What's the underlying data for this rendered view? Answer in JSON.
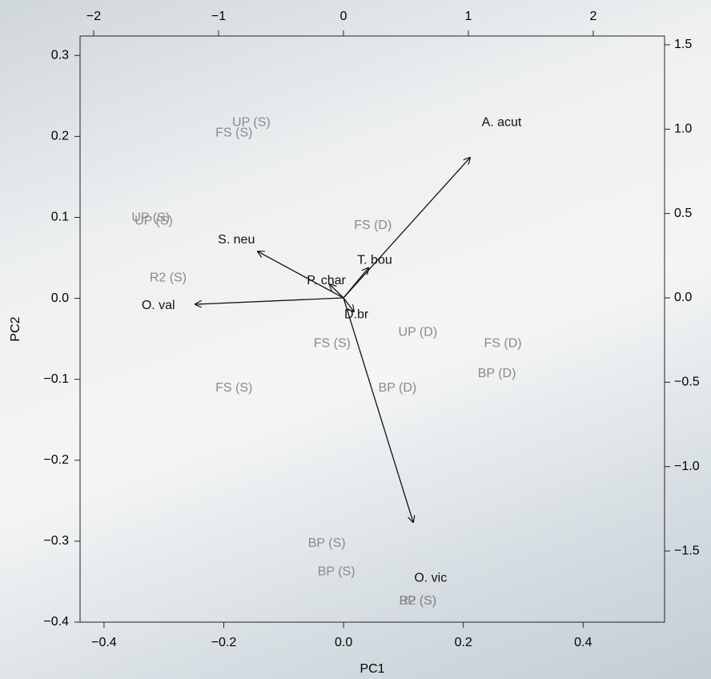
{
  "chart_data": {
    "type": "biplot",
    "xlabel": "PC1",
    "ylabel": "PC2",
    "xlim": [
      -0.44,
      0.536
    ],
    "ylim": [
      -0.4,
      0.324
    ],
    "xticks": [
      {
        "value": -0.4,
        "label": "−0.4"
      },
      {
        "value": -0.2,
        "label": "−0.2"
      },
      {
        "value": 0,
        "label": "0.0"
      },
      0.2,
      0.4
    ],
    "yticks": [
      {
        "value": -0.4,
        "label": "−0.4"
      },
      {
        "value": -0.3,
        "label": "−0.3"
      },
      {
        "value": -0.2,
        "label": "−0.2"
      },
      {
        "value": -0.1,
        "label": "−0.1"
      },
      {
        "value": 0,
        "label": "0.0"
      },
      0.1,
      0.2,
      0.3
    ],
    "x2lim": [
      -2.109,
      2.571
    ],
    "y2lim": [
      -1.922,
      1.552
    ],
    "x2ticks": [
      {
        "value": -2,
        "label": "−2"
      },
      {
        "value": -1,
        "label": "−1"
      },
      0,
      1,
      2
    ],
    "y2ticks": [
      {
        "value": -1.5,
        "label": "−1.5"
      },
      {
        "value": -1,
        "label": "−1.0"
      },
      {
        "value": -0.5,
        "label": "−0.5"
      },
      {
        "value": 0,
        "label": "0.0"
      },
      0.5,
      {
        "value": 1,
        "label": "1.0"
      },
      1.5
    ],
    "point_color": "#8a8a8a",
    "loading_color": "#111111",
    "labels": [
      "UP (S)",
      "FS (S)",
      "UP (S)",
      "UP (S)",
      "FS (D)",
      "R2 (S)",
      "FS (S)",
      "UP (D)",
      "FS (D)",
      "BP (D)",
      "FS (S)",
      "BP (D)",
      "BP (S)",
      "BP (S)",
      "BP (S)",
      "R2 (S)"
    ],
    "x": [
      -0.154,
      -0.183,
      -0.322,
      -0.317,
      0.049,
      -0.293,
      -0.019,
      0.124,
      0.266,
      0.256,
      -0.183,
      0.09,
      -0.028,
      -0.012,
      0.124,
      0.124
    ],
    "y": [
      0.217,
      0.204,
      0.099,
      0.095,
      0.09,
      0.025,
      -0.056,
      -0.042,
      -0.056,
      -0.093,
      -0.111,
      -0.111,
      -0.303,
      -0.338,
      -0.374,
      -0.374
    ],
    "loadings": [
      {
        "name": "A. acut",
        "x": 1.013,
        "y": 0.831
      },
      {
        "name": "S. neu",
        "x": -0.686,
        "y": 0.275
      },
      {
        "name": "P. char",
        "x": -0.11,
        "y": 0.08
      },
      {
        "name": "T. bou",
        "x": 0.2,
        "y": 0.178
      },
      {
        "name": "O. val",
        "x": -1.186,
        "y": -0.038
      },
      {
        "name": "D.br",
        "x": 0.083,
        "y": -0.081
      },
      {
        "name": "O. vic",
        "x": 0.558,
        "y": -1.329
      }
    ]
  }
}
